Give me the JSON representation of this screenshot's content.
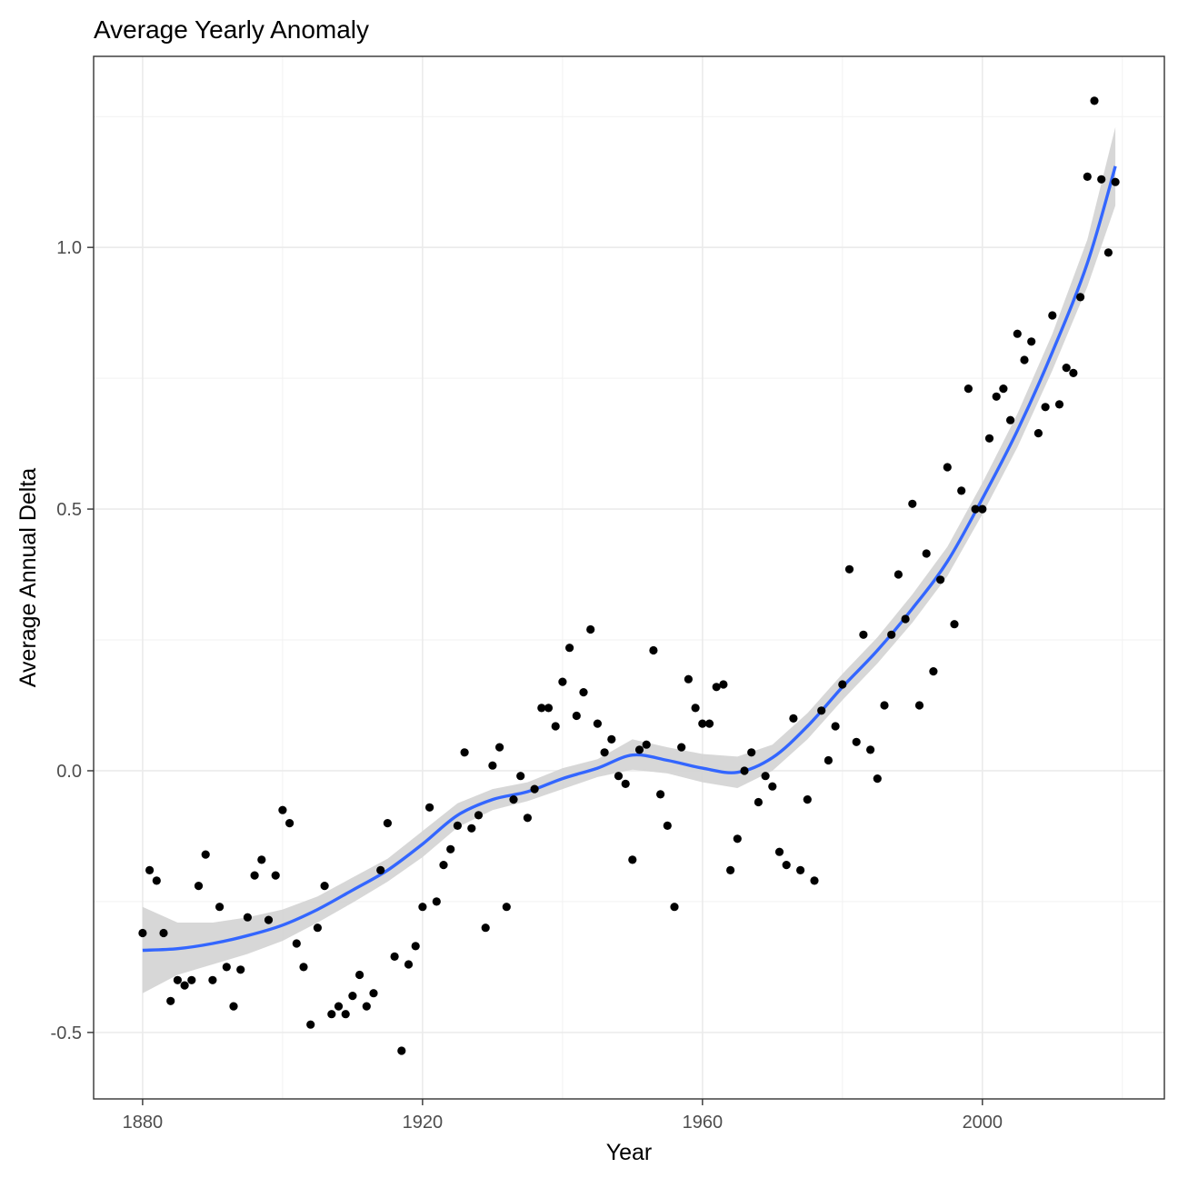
{
  "chart_data": {
    "type": "scatter",
    "title": "Average Yearly Anomaly",
    "xlabel": "Year",
    "ylabel": "Average Annual Delta",
    "xlim": [
      1873,
      2026
    ],
    "ylim": [
      -0.627,
      1.365
    ],
    "x_ticks": [
      1880,
      1920,
      1960,
      2000
    ],
    "x_tick_labels": [
      "1880",
      "1920",
      "1960",
      "2000"
    ],
    "y_ticks": [
      -0.5,
      0.0,
      0.5,
      1.0
    ],
    "y_tick_labels": [
      "-0.5",
      "0.0",
      "0.5",
      "1.0"
    ],
    "grid": true,
    "colors": {
      "points": "#000000",
      "smooth_line": "#3366FF",
      "confidence_band": "#d3d3d3",
      "panel_border": "#333333",
      "grid": "#ebebeb"
    },
    "points": {
      "x": [
        1880,
        1881,
        1882,
        1883,
        1884,
        1885,
        1886,
        1887,
        1888,
        1889,
        1890,
        1891,
        1892,
        1893,
        1894,
        1895,
        1896,
        1897,
        1898,
        1899,
        1900,
        1901,
        1902,
        1903,
        1904,
        1905,
        1906,
        1907,
        1908,
        1909,
        1910,
        1911,
        1912,
        1913,
        1914,
        1915,
        1916,
        1917,
        1918,
        1919,
        1920,
        1921,
        1922,
        1923,
        1924,
        1925,
        1926,
        1927,
        1928,
        1929,
        1930,
        1931,
        1932,
        1933,
        1934,
        1935,
        1936,
        1937,
        1938,
        1939,
        1940,
        1941,
        1942,
        1943,
        1944,
        1945,
        1946,
        1947,
        1948,
        1949,
        1950,
        1951,
        1952,
        1953,
        1954,
        1955,
        1956,
        1957,
        1958,
        1959,
        1960,
        1961,
        1962,
        1963,
        1964,
        1965,
        1966,
        1967,
        1968,
        1969,
        1970,
        1971,
        1972,
        1973,
        1974,
        1975,
        1976,
        1977,
        1978,
        1979,
        1980,
        1981,
        1982,
        1983,
        1984,
        1985,
        1986,
        1987,
        1988,
        1989,
        1990,
        1991,
        1992,
        1993,
        1994,
        1995,
        1996,
        1997,
        1998,
        1999,
        2000,
        2001,
        2002,
        2003,
        2004,
        2005,
        2006,
        2007,
        2008,
        2009,
        2010,
        2011,
        2012,
        2013,
        2014,
        2015,
        2016,
        2017,
        2018,
        2019
      ],
      "y": [
        -0.31,
        -0.19,
        -0.21,
        -0.31,
        -0.44,
        -0.4,
        -0.41,
        -0.4,
        -0.22,
        -0.16,
        -0.4,
        -0.26,
        -0.375,
        -0.45,
        -0.38,
        -0.28,
        -0.2,
        -0.17,
        -0.285,
        -0.2,
        -0.075,
        -0.1,
        -0.33,
        -0.375,
        -0.485,
        -0.3,
        -0.22,
        -0.465,
        -0.45,
        -0.465,
        -0.43,
        -0.39,
        -0.45,
        -0.425,
        -0.19,
        -0.1,
        -0.355,
        -0.535,
        -0.37,
        -0.335,
        -0.26,
        -0.07,
        -0.25,
        -0.18,
        -0.15,
        -0.105,
        0.035,
        -0.11,
        -0.085,
        -0.3,
        0.01,
        0.045,
        -0.26,
        -0.055,
        -0.01,
        -0.09,
        -0.035,
        0.12,
        0.12,
        0.085,
        0.17,
        0.235,
        0.105,
        0.15,
        0.27,
        0.09,
        0.035,
        0.06,
        -0.01,
        -0.025,
        -0.17,
        0.04,
        0.05,
        0.23,
        -0.045,
        -0.105,
        -0.26,
        0.045,
        0.175,
        0.12,
        0.09,
        0.09,
        0.16,
        0.165,
        -0.19,
        -0.13,
        0.0,
        0.035,
        -0.06,
        -0.01,
        -0.03,
        -0.155,
        -0.18,
        0.1,
        -0.19,
        -0.055,
        -0.21,
        0.115,
        0.02,
        0.085,
        0.165,
        0.385,
        0.055,
        0.26,
        0.04,
        -0.015,
        0.125,
        0.26,
        0.375,
        0.29,
        0.51,
        0.125,
        0.415,
        0.19,
        0.365,
        0.58,
        0.28,
        0.535,
        0.73,
        0.5,
        0.5,
        0.635,
        0.715,
        0.73,
        0.67,
        0.835,
        0.785,
        0.82,
        0.645,
        0.695,
        0.87,
        0.7,
        0.77,
        0.76,
        0.905,
        1.135,
        1.28,
        1.13,
        0.99,
        1.125
      ]
    },
    "smooth": {
      "x": [
        1880,
        1885,
        1890,
        1895,
        1900,
        1905,
        1910,
        1915,
        1920,
        1925,
        1930,
        1935,
        1940,
        1945,
        1950,
        1955,
        1960,
        1965,
        1970,
        1975,
        1980,
        1985,
        1990,
        1995,
        2000,
        2005,
        2010,
        2015,
        2019
      ],
      "y": [
        -0.343,
        -0.34,
        -0.33,
        -0.315,
        -0.295,
        -0.265,
        -0.228,
        -0.19,
        -0.14,
        -0.085,
        -0.055,
        -0.04,
        -0.015,
        0.005,
        0.03,
        0.02,
        0.005,
        -0.003,
        0.025,
        0.085,
        0.16,
        0.23,
        0.31,
        0.4,
        0.52,
        0.65,
        0.8,
        0.97,
        1.155
      ],
      "lower": [
        -0.425,
        -0.39,
        -0.37,
        -0.35,
        -0.325,
        -0.29,
        -0.252,
        -0.212,
        -0.165,
        -0.108,
        -0.075,
        -0.058,
        -0.035,
        -0.012,
        0.002,
        -0.005,
        -0.022,
        -0.033,
        0.0,
        0.06,
        0.135,
        0.205,
        0.283,
        0.372,
        0.49,
        0.618,
        0.765,
        0.925,
        1.08
      ],
      "upper": [
        -0.26,
        -0.29,
        -0.29,
        -0.28,
        -0.265,
        -0.24,
        -0.204,
        -0.168,
        -0.115,
        -0.062,
        -0.035,
        -0.022,
        0.005,
        0.022,
        0.06,
        0.045,
        0.032,
        0.027,
        0.05,
        0.11,
        0.185,
        0.255,
        0.337,
        0.428,
        0.55,
        0.682,
        0.835,
        1.015,
        1.23
      ]
    }
  }
}
